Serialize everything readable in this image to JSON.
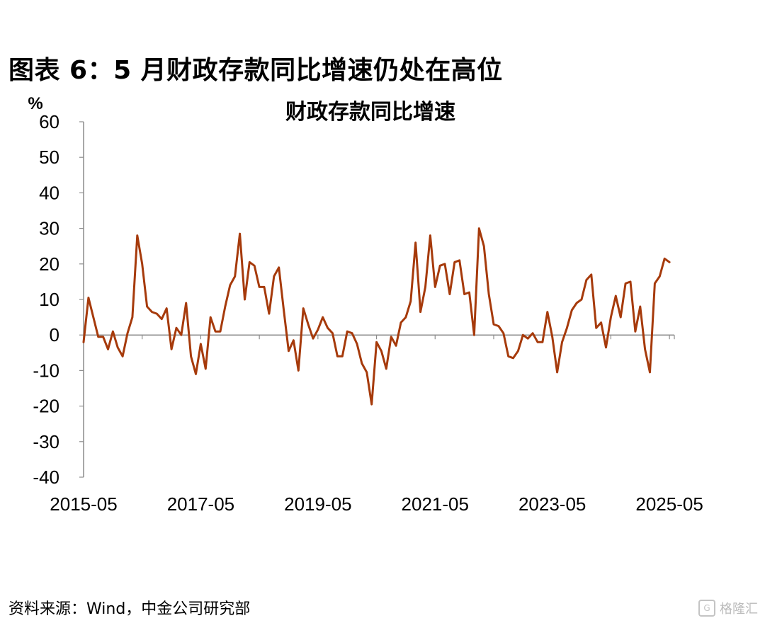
{
  "figure_title": "图表 6：5 月财政存款同比增速仍处在高位",
  "source": "资料来源：Wind，中金公司研究部",
  "watermark": {
    "text": "格隆汇",
    "icon": "G-logo-icon"
  },
  "colors": {
    "line": "#a63a0b",
    "axis": "#8c8c8c"
  },
  "chart_data": {
    "type": "line",
    "title": "财政存款同比增速",
    "ylabel": "%",
    "xlabel": "",
    "ylim": [
      -40,
      60
    ],
    "yticks": [
      "60",
      "50",
      "40",
      "30",
      "20",
      "10",
      "0",
      "-10",
      "-20",
      "-30",
      "-40"
    ],
    "xlim": [
      "2015-05",
      "2025-06"
    ],
    "xtick_labels": [
      "2015-05",
      "2017-05",
      "2019-05",
      "2021-05",
      "2023-05",
      "2025-05"
    ],
    "grid": false,
    "legend": "none",
    "series": [
      {
        "values": [
          -2,
          10.5,
          5,
          -0.5,
          -0.5,
          -4,
          1,
          -3.5,
          -6,
          0.5,
          5,
          28,
          20,
          8,
          6.5,
          6,
          4.5,
          7.5,
          -4,
          2,
          0,
          9,
          -6,
          -11,
          -2.5,
          -9.5,
          5,
          1,
          1,
          8,
          14,
          16.5,
          28.5,
          10,
          20.5,
          19.5,
          13.5,
          13.5,
          6,
          16.5,
          19,
          7,
          -4.5,
          -1.5,
          -10,
          7.5,
          3,
          -1,
          1.5,
          5,
          2,
          0.5,
          -6,
          -6,
          1,
          0.5,
          -2.5,
          -8,
          -10.5,
          -19.5,
          -2,
          -4.5,
          -9.5,
          -0.5,
          -3,
          3.5,
          5,
          9.5,
          26,
          6.5,
          13.5,
          28,
          13.5,
          19.5,
          20,
          11.5,
          20.5,
          21,
          11.5,
          12,
          0,
          30,
          25,
          11.5,
          3,
          2.5,
          0.5,
          -6,
          -6.5,
          -4.5,
          0,
          -1,
          0.5,
          -2,
          -2,
          6.5,
          -0.5,
          -10.5,
          -2,
          2,
          7,
          9,
          10,
          15.5,
          17,
          2,
          3.5,
          -3.5,
          5,
          11,
          5,
          14.5,
          15,
          1,
          8,
          -4,
          -10.5,
          14.5,
          16.5,
          21.5,
          20.5
        ]
      }
    ]
  }
}
